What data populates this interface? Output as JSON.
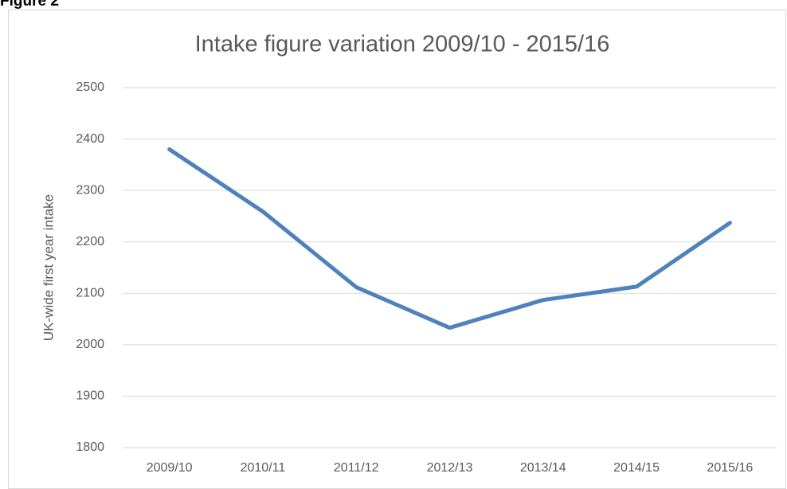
{
  "figure_label": "Figure 2",
  "chart_data": {
    "type": "line",
    "title": "Intake figure variation 2009/10 - 2015/16",
    "y_label": "UK-wide first year intake",
    "categories": [
      "2009/10",
      "2010/11",
      "2011/12",
      "2012/13",
      "2013/14",
      "2014/15",
      "2015/16"
    ],
    "series": [
      {
        "name": "UK-wide first year intake",
        "color": "#4f81bd",
        "values": [
          2380,
          2259,
          2112,
          2033,
          2087,
          2113,
          2237
        ]
      }
    ],
    "ylim": [
      1800,
      2500
    ],
    "yticks": [
      1800,
      1900,
      2000,
      2100,
      2200,
      2300,
      2400,
      2500
    ],
    "grid": true
  }
}
